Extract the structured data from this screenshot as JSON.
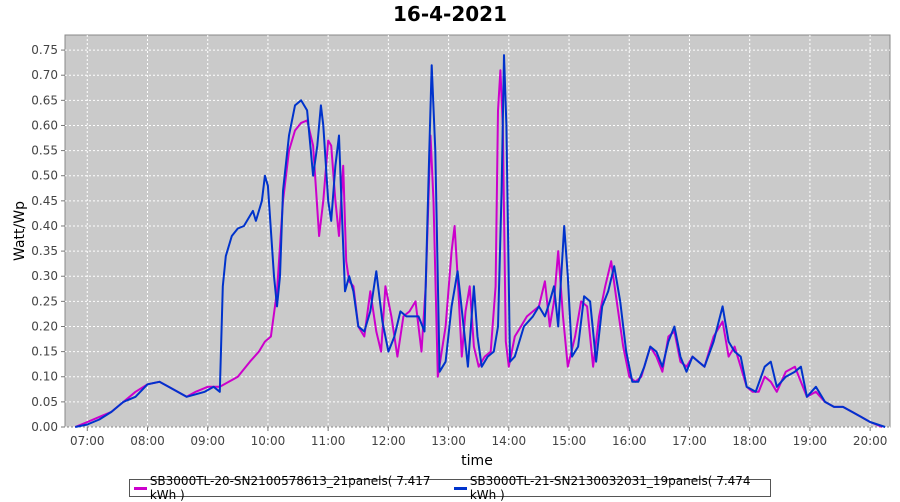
{
  "chart_data": {
    "type": "line",
    "title": "16-4-2021",
    "xlabel": "time",
    "ylabel": "Watt/Wp",
    "ylim": [
      0,
      0.78
    ],
    "y_ticks": [
      "0.00",
      "0.05",
      "0.10",
      "0.15",
      "0.20",
      "0.25",
      "0.30",
      "0.35",
      "0.40",
      "0.45",
      "0.50",
      "0.55",
      "0.60",
      "0.65",
      "0.70",
      "0.75"
    ],
    "x_ticks": [
      "07:00",
      "08:00",
      "09:00",
      "10:00",
      "11:00",
      "12:00",
      "13:00",
      "14:00",
      "15:00",
      "16:00",
      "17:00",
      "18:00",
      "19:00",
      "20:00"
    ],
    "x_range_hours": [
      6.63,
      20.33
    ],
    "grid": true,
    "legend_position": "bottom",
    "colors": {
      "plot_bg": "#cacaca",
      "grid": "#ffffff"
    },
    "series": [
      {
        "name": "SB3000TL-20-SN2100578613_21panels( 7.417 kWh )",
        "color": "#cc00cc",
        "points": [
          [
            6.8,
            0.0
          ],
          [
            7.0,
            0.01
          ],
          [
            7.2,
            0.02
          ],
          [
            7.4,
            0.03
          ],
          [
            7.6,
            0.05
          ],
          [
            7.8,
            0.07
          ],
          [
            8.0,
            0.085
          ],
          [
            8.2,
            0.09
          ],
          [
            8.35,
            0.08
          ],
          [
            8.5,
            0.07
          ],
          [
            8.65,
            0.06
          ],
          [
            8.8,
            0.07
          ],
          [
            9.0,
            0.08
          ],
          [
            9.2,
            0.08
          ],
          [
            9.35,
            0.09
          ],
          [
            9.5,
            0.1
          ],
          [
            9.7,
            0.13
          ],
          [
            9.85,
            0.15
          ],
          [
            9.95,
            0.17
          ],
          [
            10.05,
            0.18
          ],
          [
            10.15,
            0.27
          ],
          [
            10.25,
            0.45
          ],
          [
            10.35,
            0.55
          ],
          [
            10.45,
            0.59
          ],
          [
            10.55,
            0.605
          ],
          [
            10.65,
            0.61
          ],
          [
            10.75,
            0.56
          ],
          [
            10.85,
            0.38
          ],
          [
            10.92,
            0.45
          ],
          [
            11.0,
            0.57
          ],
          [
            11.05,
            0.56
          ],
          [
            11.12,
            0.45
          ],
          [
            11.18,
            0.38
          ],
          [
            11.25,
            0.52
          ],
          [
            11.3,
            0.33
          ],
          [
            11.35,
            0.29
          ],
          [
            11.42,
            0.28
          ],
          [
            11.5,
            0.2
          ],
          [
            11.6,
            0.18
          ],
          [
            11.7,
            0.27
          ],
          [
            11.8,
            0.19
          ],
          [
            11.88,
            0.15
          ],
          [
            11.95,
            0.28
          ],
          [
            12.05,
            0.22
          ],
          [
            12.15,
            0.14
          ],
          [
            12.25,
            0.22
          ],
          [
            12.35,
            0.23
          ],
          [
            12.45,
            0.25
          ],
          [
            12.55,
            0.15
          ],
          [
            12.62,
            0.28
          ],
          [
            12.7,
            0.58
          ],
          [
            12.75,
            0.45
          ],
          [
            12.82,
            0.1
          ],
          [
            12.95,
            0.2
          ],
          [
            13.05,
            0.35
          ],
          [
            13.1,
            0.4
          ],
          [
            13.15,
            0.3
          ],
          [
            13.22,
            0.14
          ],
          [
            13.28,
            0.23
          ],
          [
            13.35,
            0.28
          ],
          [
            13.42,
            0.16
          ],
          [
            13.5,
            0.12
          ],
          [
            13.6,
            0.14
          ],
          [
            13.7,
            0.15
          ],
          [
            13.78,
            0.28
          ],
          [
            13.82,
            0.63
          ],
          [
            13.86,
            0.71
          ],
          [
            13.9,
            0.6
          ],
          [
            13.95,
            0.17
          ],
          [
            14.0,
            0.12
          ],
          [
            14.1,
            0.18
          ],
          [
            14.2,
            0.2
          ],
          [
            14.3,
            0.22
          ],
          [
            14.4,
            0.23
          ],
          [
            14.5,
            0.24
          ],
          [
            14.6,
            0.29
          ],
          [
            14.68,
            0.2
          ],
          [
            14.75,
            0.25
          ],
          [
            14.82,
            0.35
          ],
          [
            14.9,
            0.22
          ],
          [
            14.98,
            0.12
          ],
          [
            15.1,
            0.18
          ],
          [
            15.2,
            0.25
          ],
          [
            15.3,
            0.24
          ],
          [
            15.4,
            0.12
          ],
          [
            15.5,
            0.22
          ],
          [
            15.6,
            0.28
          ],
          [
            15.7,
            0.33
          ],
          [
            15.78,
            0.26
          ],
          [
            15.9,
            0.16
          ],
          [
            16.0,
            0.1
          ],
          [
            16.1,
            0.09
          ],
          [
            16.2,
            0.1
          ],
          [
            16.35,
            0.16
          ],
          [
            16.45,
            0.14
          ],
          [
            16.55,
            0.11
          ],
          [
            16.65,
            0.18
          ],
          [
            16.75,
            0.19
          ],
          [
            16.85,
            0.13
          ],
          [
            16.95,
            0.12
          ],
          [
            17.05,
            0.14
          ],
          [
            17.15,
            0.13
          ],
          [
            17.25,
            0.12
          ],
          [
            17.4,
            0.18
          ],
          [
            17.55,
            0.21
          ],
          [
            17.65,
            0.14
          ],
          [
            17.75,
            0.16
          ],
          [
            17.85,
            0.12
          ],
          [
            17.95,
            0.08
          ],
          [
            18.05,
            0.07
          ],
          [
            18.15,
            0.07
          ],
          [
            18.25,
            0.1
          ],
          [
            18.35,
            0.09
          ],
          [
            18.45,
            0.07
          ],
          [
            18.6,
            0.11
          ],
          [
            18.75,
            0.12
          ],
          [
            18.85,
            0.09
          ],
          [
            18.95,
            0.06
          ],
          [
            19.1,
            0.07
          ],
          [
            19.25,
            0.05
          ],
          [
            19.4,
            0.04
          ],
          [
            19.55,
            0.04
          ],
          [
            19.7,
            0.03
          ],
          [
            19.85,
            0.02
          ],
          [
            20.0,
            0.01
          ],
          [
            20.2,
            0.0
          ]
        ]
      },
      {
        "name": "SB3000TL-21-SN2130032031_19panels( 7.474 kWh )",
        "color": "#0033cc",
        "points": [
          [
            6.8,
            0.0
          ],
          [
            7.0,
            0.005
          ],
          [
            7.2,
            0.015
          ],
          [
            7.4,
            0.03
          ],
          [
            7.6,
            0.05
          ],
          [
            7.8,
            0.06
          ],
          [
            8.0,
            0.085
          ],
          [
            8.2,
            0.09
          ],
          [
            8.35,
            0.08
          ],
          [
            8.5,
            0.07
          ],
          [
            8.65,
            0.06
          ],
          [
            8.8,
            0.065
          ],
          [
            8.95,
            0.07
          ],
          [
            9.1,
            0.08
          ],
          [
            9.2,
            0.07
          ],
          [
            9.25,
            0.28
          ],
          [
            9.3,
            0.34
          ],
          [
            9.4,
            0.38
          ],
          [
            9.5,
            0.395
          ],
          [
            9.6,
            0.4
          ],
          [
            9.7,
            0.42
          ],
          [
            9.75,
            0.43
          ],
          [
            9.8,
            0.41
          ],
          [
            9.9,
            0.45
          ],
          [
            9.95,
            0.5
          ],
          [
            10.0,
            0.48
          ],
          [
            10.1,
            0.3
          ],
          [
            10.15,
            0.24
          ],
          [
            10.2,
            0.3
          ],
          [
            10.25,
            0.47
          ],
          [
            10.35,
            0.58
          ],
          [
            10.45,
            0.64
          ],
          [
            10.55,
            0.65
          ],
          [
            10.65,
            0.63
          ],
          [
            10.75,
            0.5
          ],
          [
            10.82,
            0.56
          ],
          [
            10.88,
            0.64
          ],
          [
            10.92,
            0.6
          ],
          [
            11.0,
            0.45
          ],
          [
            11.05,
            0.41
          ],
          [
            11.12,
            0.52
          ],
          [
            11.18,
            0.58
          ],
          [
            11.22,
            0.45
          ],
          [
            11.28,
            0.27
          ],
          [
            11.35,
            0.3
          ],
          [
            11.42,
            0.27
          ],
          [
            11.5,
            0.2
          ],
          [
            11.6,
            0.19
          ],
          [
            11.7,
            0.23
          ],
          [
            11.8,
            0.31
          ],
          [
            11.9,
            0.21
          ],
          [
            12.0,
            0.15
          ],
          [
            12.1,
            0.18
          ],
          [
            12.2,
            0.23
          ],
          [
            12.3,
            0.22
          ],
          [
            12.4,
            0.22
          ],
          [
            12.5,
            0.22
          ],
          [
            12.6,
            0.19
          ],
          [
            12.68,
            0.55
          ],
          [
            12.72,
            0.72
          ],
          [
            12.78,
            0.55
          ],
          [
            12.85,
            0.11
          ],
          [
            12.95,
            0.13
          ],
          [
            13.05,
            0.24
          ],
          [
            13.15,
            0.31
          ],
          [
            13.25,
            0.2
          ],
          [
            13.32,
            0.12
          ],
          [
            13.42,
            0.28
          ],
          [
            13.48,
            0.18
          ],
          [
            13.55,
            0.12
          ],
          [
            13.65,
            0.14
          ],
          [
            13.75,
            0.15
          ],
          [
            13.82,
            0.2
          ],
          [
            13.88,
            0.47
          ],
          [
            13.92,
            0.74
          ],
          [
            13.96,
            0.6
          ],
          [
            14.02,
            0.13
          ],
          [
            14.1,
            0.14
          ],
          [
            14.25,
            0.2
          ],
          [
            14.4,
            0.22
          ],
          [
            14.5,
            0.24
          ],
          [
            14.6,
            0.22
          ],
          [
            14.68,
            0.25
          ],
          [
            14.75,
            0.28
          ],
          [
            14.82,
            0.2
          ],
          [
            14.92,
            0.4
          ],
          [
            14.98,
            0.3
          ],
          [
            15.05,
            0.14
          ],
          [
            15.15,
            0.16
          ],
          [
            15.25,
            0.26
          ],
          [
            15.35,
            0.25
          ],
          [
            15.45,
            0.13
          ],
          [
            15.55,
            0.24
          ],
          [
            15.65,
            0.27
          ],
          [
            15.75,
            0.32
          ],
          [
            15.85,
            0.25
          ],
          [
            15.95,
            0.15
          ],
          [
            16.05,
            0.09
          ],
          [
            16.15,
            0.09
          ],
          [
            16.25,
            0.12
          ],
          [
            16.35,
            0.16
          ],
          [
            16.45,
            0.15
          ],
          [
            16.55,
            0.12
          ],
          [
            16.65,
            0.17
          ],
          [
            16.75,
            0.2
          ],
          [
            16.85,
            0.14
          ],
          [
            16.95,
            0.11
          ],
          [
            17.05,
            0.14
          ],
          [
            17.15,
            0.13
          ],
          [
            17.25,
            0.12
          ],
          [
            17.4,
            0.17
          ],
          [
            17.55,
            0.24
          ],
          [
            17.65,
            0.17
          ],
          [
            17.75,
            0.15
          ],
          [
            17.85,
            0.14
          ],
          [
            17.95,
            0.08
          ],
          [
            18.1,
            0.07
          ],
          [
            18.25,
            0.12
          ],
          [
            18.35,
            0.13
          ],
          [
            18.45,
            0.08
          ],
          [
            18.6,
            0.1
          ],
          [
            18.75,
            0.11
          ],
          [
            18.85,
            0.12
          ],
          [
            18.95,
            0.06
          ],
          [
            19.1,
            0.08
          ],
          [
            19.25,
            0.05
          ],
          [
            19.4,
            0.04
          ],
          [
            19.55,
            0.04
          ],
          [
            19.7,
            0.03
          ],
          [
            19.85,
            0.02
          ],
          [
            20.0,
            0.01
          ],
          [
            20.25,
            0.0
          ]
        ]
      }
    ]
  }
}
